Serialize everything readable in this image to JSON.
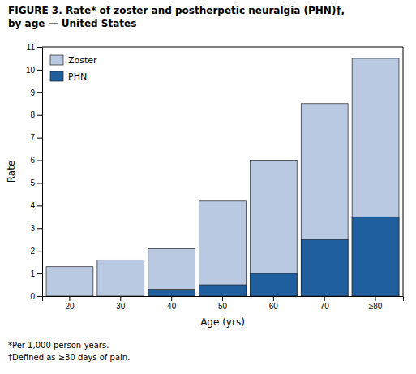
{
  "chart_data": {
    "type": "bar",
    "title": "FIGURE 3.  Rate* of zoster and postherpetic neuralgia (PHN)†,",
    "subtitle": "by age — United States",
    "x_label": "Age (yrs)",
    "y_label": "Rate",
    "categories": [
      "20",
      "30",
      "40",
      "50",
      "60",
      "70",
      "≥80"
    ],
    "series": [
      {
        "name": "Zoster",
        "color": "#b8c9e1",
        "values": [
          1.3,
          1.6,
          2.1,
          4.2,
          6.0,
          8.5,
          10.5
        ]
      },
      {
        "name": "PHN",
        "color": "#1f5f9e",
        "values": [
          0.0,
          0.0,
          0.3,
          0.5,
          1.0,
          2.5,
          3.5
        ]
      }
    ],
    "stacked": false,
    "ylim": [
      0,
      11
    ],
    "yticks": [
      0,
      1,
      2,
      3,
      4,
      5,
      6,
      7,
      8,
      9,
      10,
      11
    ],
    "grid": false,
    "legend": "upper left",
    "annotations": [
      "*Per 1,000 person-years.",
      "†Defined as ≥30 days of pain."
    ]
  }
}
